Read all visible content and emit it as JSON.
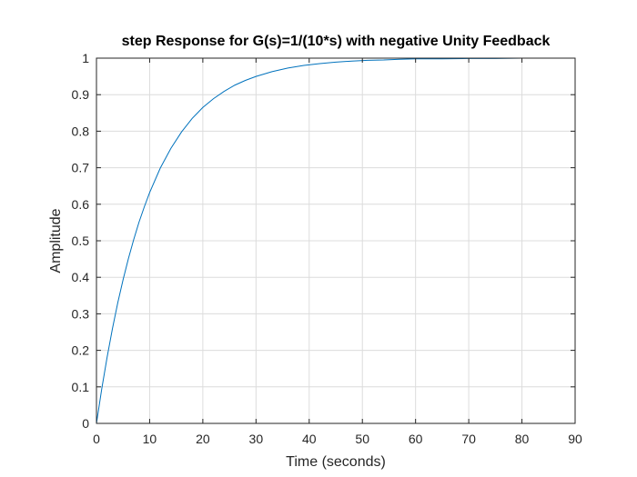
{
  "chart_data": {
    "type": "line",
    "title": "step Response for G(s)=1/(10*s) with negative Unity Feedback",
    "xlabel": "Time (seconds)",
    "ylabel": "Amplitude",
    "xlim": [
      0,
      90
    ],
    "ylim": [
      0,
      1
    ],
    "xticks": [
      "0",
      "10",
      "20",
      "30",
      "40",
      "50",
      "60",
      "70",
      "80",
      "90"
    ],
    "yticks": [
      "0",
      "0.1",
      "0.2",
      "0.3",
      "0.4",
      "0.5",
      "0.6",
      "0.7",
      "0.8",
      "0.9",
      "1"
    ],
    "grid": true,
    "series": [
      {
        "color": "#0072bd",
        "x": [
          0,
          1,
          2,
          3,
          4,
          5,
          6,
          7,
          8,
          9,
          10,
          12,
          14,
          16,
          18,
          20,
          22,
          24,
          26,
          28,
          30,
          33,
          36,
          39,
          42,
          45,
          48,
          51,
          54,
          57,
          60,
          65,
          70,
          75,
          80,
          90
        ],
        "y": [
          0,
          0.095,
          0.181,
          0.259,
          0.33,
          0.393,
          0.451,
          0.503,
          0.551,
          0.593,
          0.632,
          0.699,
          0.753,
          0.798,
          0.835,
          0.865,
          0.889,
          0.909,
          0.926,
          0.939,
          0.95,
          0.963,
          0.973,
          0.98,
          0.985,
          0.989,
          0.992,
          0.994,
          0.995,
          0.997,
          0.998,
          0.998,
          0.999,
          0.999,
          1.0,
          1.0
        ]
      }
    ]
  }
}
